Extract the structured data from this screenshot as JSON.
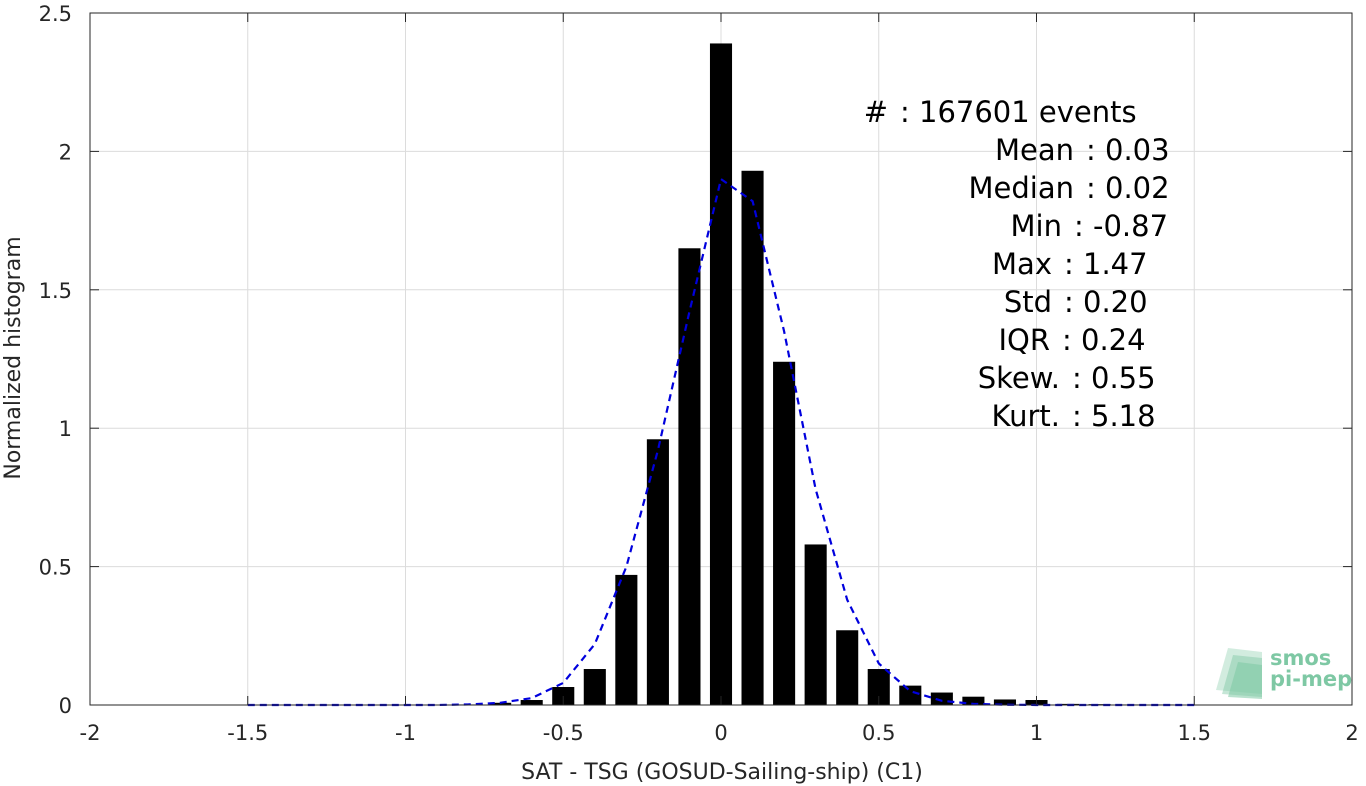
{
  "chart_data": {
    "type": "bar",
    "xlabel": "SAT - TSG (GOSUD-Sailing-ship) (C1)",
    "ylabel": "Normalized histogram",
    "xlim": [
      -2,
      2
    ],
    "ylim": [
      0,
      2.5
    ],
    "xticks": [
      -2,
      -1.5,
      -1,
      -0.5,
      0,
      0.5,
      1,
      1.5,
      2
    ],
    "xtick_labels": [
      "-2",
      "-1.5",
      "-1",
      "-0.5",
      "0",
      "0.5",
      "1",
      "1.5",
      "2"
    ],
    "yticks": [
      0,
      0.5,
      1,
      1.5,
      2,
      2.5
    ],
    "ytick_labels": [
      "0",
      "0.5",
      "1",
      "1.5",
      "2",
      "2.5"
    ],
    "grid": true,
    "bar_width": 0.07,
    "bar_color": "#000000",
    "histogram": {
      "x": [
        -0.8,
        -0.7,
        -0.6,
        -0.5,
        -0.4,
        -0.3,
        -0.2,
        -0.1,
        0.0,
        0.1,
        0.2,
        0.3,
        0.4,
        0.5,
        0.6,
        0.7,
        0.8,
        0.9,
        1.0,
        1.1,
        1.2,
        1.3,
        1.4,
        1.5
      ],
      "values": [
        0.002,
        0.008,
        0.018,
        0.065,
        0.13,
        0.47,
        0.96,
        1.65,
        2.39,
        1.93,
        1.24,
        0.58,
        0.27,
        0.13,
        0.07,
        0.045,
        0.03,
        0.02,
        0.018,
        0.004,
        0.003,
        0.002,
        0.002,
        0.001
      ]
    },
    "fit_curve": {
      "style": "dashed",
      "color": "#0000dd",
      "x": [
        -1.5,
        -1.4,
        -1.3,
        -1.2,
        -1.1,
        -1.0,
        -0.9,
        -0.8,
        -0.7,
        -0.6,
        -0.5,
        -0.4,
        -0.3,
        -0.2,
        -0.1,
        0.0,
        0.1,
        0.2,
        0.3,
        0.4,
        0.5,
        0.6,
        0.7,
        0.8,
        0.9,
        1.0,
        1.1,
        1.2,
        1.3,
        1.4,
        1.5
      ],
      "y": [
        0.0,
        0.0,
        0.0,
        0.0,
        0.0,
        0.0,
        0.0,
        0.002,
        0.008,
        0.025,
        0.08,
        0.22,
        0.5,
        0.92,
        1.42,
        1.9,
        1.82,
        1.35,
        0.78,
        0.38,
        0.15,
        0.05,
        0.015,
        0.004,
        0.001,
        0.0,
        0.0,
        0.0,
        0.0,
        0.0,
        0.0
      ]
    },
    "annotations": [
      {
        "label": "#",
        "value": ": 167601 events"
      },
      {
        "label": "Mean",
        "value": ": 0.03"
      },
      {
        "label": "Median",
        "value": ": 0.02"
      },
      {
        "label": "Min",
        "value": ": -0.87"
      },
      {
        "label": "Max",
        "value": ": 1.47"
      },
      {
        "label": "Std",
        "value": ": 0.20"
      },
      {
        "label": "IQR",
        "value": ": 0.24"
      },
      {
        "label": "Skew.",
        "value": ": 0.55"
      },
      {
        "label": "Kurt.",
        "value": ": 5.18"
      }
    ]
  },
  "watermark": {
    "line1": "smos",
    "line2": "pi-mep",
    "color": "#7ec8a4"
  }
}
